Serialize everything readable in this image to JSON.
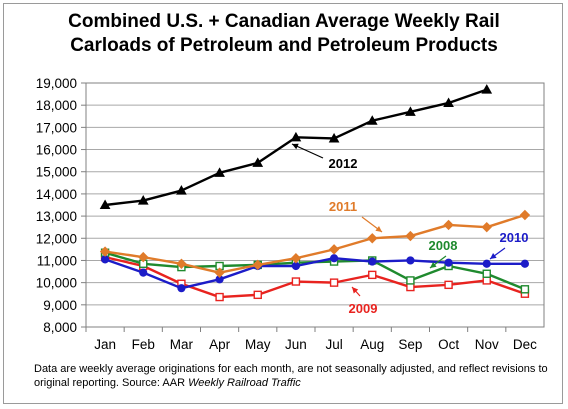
{
  "title": {
    "line1": "Combined U.S. + Canadian Average Weekly Rail",
    "line2": "Carloads of Petroleum and Petroleum Products"
  },
  "footnote": {
    "text": "Data are weekly average originations for each month, are not seasonally adjusted, and reflect revisions to original reporting.  Source: AAR ",
    "source_italic": "Weekly Railroad Traffic"
  },
  "chart_data": {
    "type": "line",
    "title": "Combined U.S. + Canadian Average Weekly Rail Carloads of Petroleum and Petroleum Products",
    "categories": [
      "Jan",
      "Feb",
      "Mar",
      "Apr",
      "May",
      "Jun",
      "Jul",
      "Aug",
      "Sep",
      "Oct",
      "Nov",
      "Dec"
    ],
    "ylim": [
      8000,
      19000
    ],
    "yticks": [
      8000,
      9000,
      10000,
      11000,
      12000,
      13000,
      14000,
      15000,
      16000,
      17000,
      18000,
      19000
    ],
    "ytick_labels": [
      "8,000",
      "9,000",
      "10,000",
      "11,000",
      "12,000",
      "13,000",
      "14,000",
      "15,000",
      "16,000",
      "17,000",
      "18,000",
      "19,000"
    ],
    "grid": true,
    "series": [
      {
        "name": "2009",
        "color": "#e8231f",
        "marker": "square-open",
        "values": [
          11150,
          10750,
          9950,
          9350,
          9450,
          10050,
          10000,
          10350,
          9800,
          9900,
          10100,
          9500
        ]
      },
      {
        "name": "2008",
        "color": "#1f8a2e",
        "marker": "square-open",
        "values": [
          11350,
          10850,
          10700,
          10750,
          10800,
          10900,
          10950,
          11000,
          10100,
          10750,
          10400,
          9700
        ]
      },
      {
        "name": "2010",
        "color": "#1c1cc8",
        "marker": "circle",
        "values": [
          11050,
          10450,
          9750,
          10150,
          10750,
          10750,
          11100,
          10950,
          11000,
          10900,
          10850,
          10850
        ]
      },
      {
        "name": "2011",
        "color": "#e07b2a",
        "marker": "diamond",
        "values": [
          11400,
          11150,
          10850,
          10450,
          10800,
          11100,
          11500,
          12000,
          12100,
          12600,
          12500,
          13050
        ]
      },
      {
        "name": "2012",
        "color": "#000000",
        "marker": "triangle",
        "values": [
          13500,
          13700,
          14150,
          14950,
          15400,
          16550,
          16500,
          17300,
          17700,
          18100,
          18700,
          null
        ]
      }
    ],
    "annotations": [
      {
        "series": "2012",
        "text": "2012",
        "color": "#000000"
      },
      {
        "series": "2011",
        "text": "2011",
        "color": "#e07b2a"
      },
      {
        "series": "2008",
        "text": "2008",
        "color": "#1f8a2e"
      },
      {
        "series": "2010",
        "text": "2010",
        "color": "#1c1cc8"
      },
      {
        "series": "2009",
        "text": "2009",
        "color": "#e8231f"
      }
    ]
  }
}
